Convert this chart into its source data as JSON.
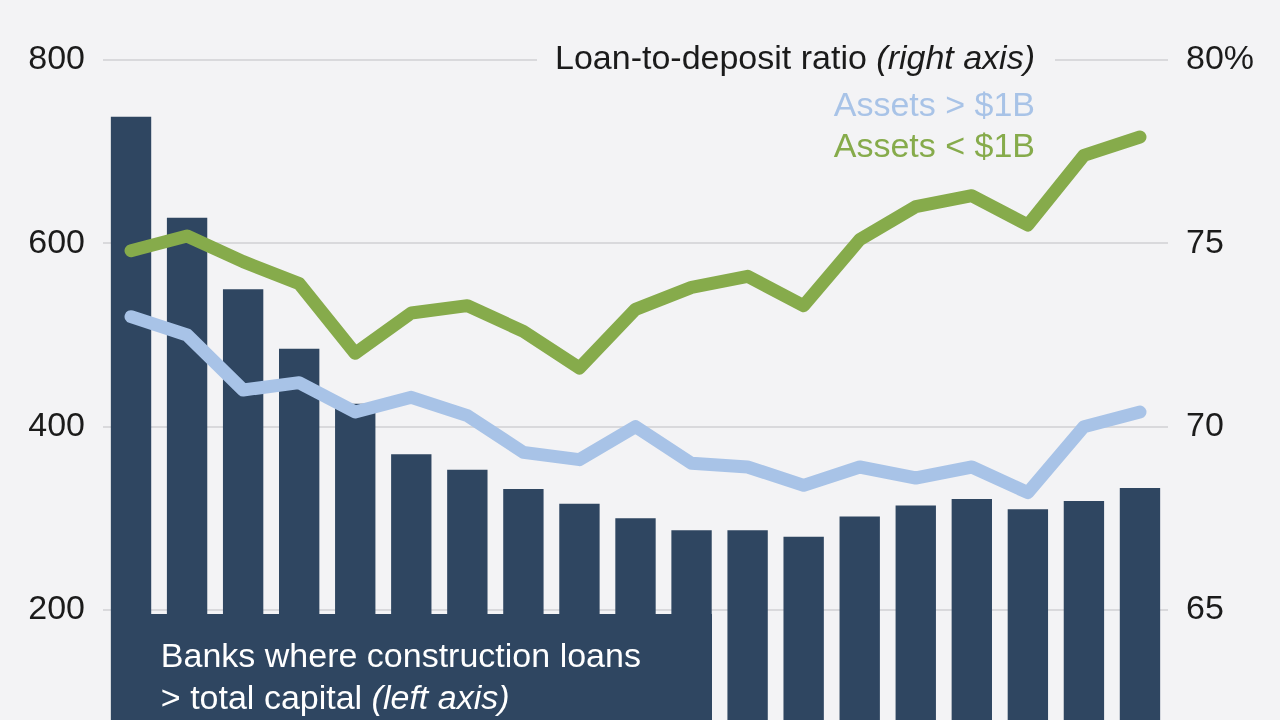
{
  "chart_data": {
    "type": "bar",
    "legend_title": "Loan-to-deposit ratio (right axis)",
    "categories": [
      null,
      null,
      null,
      null,
      null,
      null,
      null,
      null,
      null,
      null,
      null,
      null,
      null,
      null,
      null,
      null,
      null,
      null,
      null
    ],
    "series": [
      {
        "name": "Banks where construction loans > total capital (left axis)",
        "color": "#2f4661",
        "values": [
          738,
          628,
          550,
          485,
          425,
          370,
          353,
          332,
          316,
          300,
          287,
          287,
          280,
          302,
          314,
          321,
          310,
          319,
          333
        ]
      },
      {
        "name": "Assets > $1B",
        "type": "line",
        "axis": "y2",
        "color": "#a8c3e7",
        "values": [
          73.0,
          72.5,
          71.0,
          71.2,
          70.4,
          70.8,
          70.3,
          69.3,
          69.1,
          70.0,
          69.0,
          68.9,
          68.4,
          68.9,
          68.6,
          68.9,
          68.2,
          70.0,
          70.4
        ]
      },
      {
        "name": "Assets < $1B",
        "type": "line",
        "axis": "y2",
        "color": "#86ab4b",
        "values": [
          74.8,
          75.2,
          74.5,
          73.9,
          72.0,
          73.1,
          73.3,
          72.6,
          71.6,
          73.2,
          73.8,
          74.1,
          73.3,
          75.1,
          76.0,
          76.3,
          75.5,
          77.4,
          77.9
        ]
      }
    ],
    "ylim": [
      80,
      800
    ],
    "yticks": [
      200,
      400,
      600,
      800
    ],
    "y2lim": [
      62,
      80
    ],
    "y2ticks": [
      65,
      70,
      75,
      {
        "value": 80,
        "label": "80%"
      }
    ],
    "grid": "y",
    "legend": "top right",
    "marker": "none",
    "line_style": "solid"
  }
}
